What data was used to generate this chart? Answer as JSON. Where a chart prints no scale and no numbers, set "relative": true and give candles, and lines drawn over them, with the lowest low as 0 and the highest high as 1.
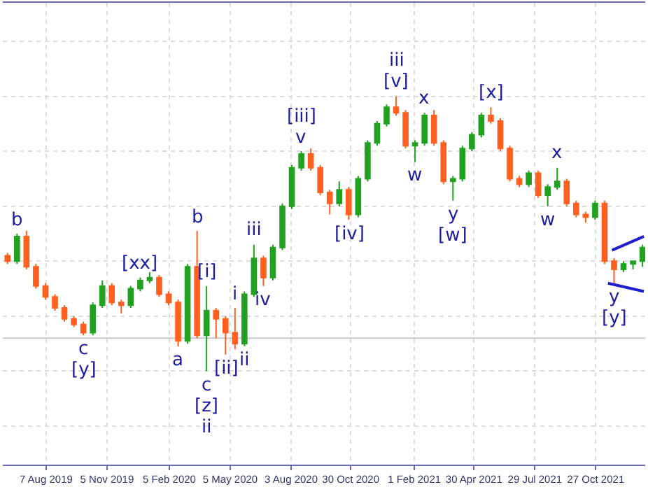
{
  "chart_data": {
    "type": "candlestick",
    "relative": true,
    "grid": true,
    "x": [
      "2019-06-11",
      "2019-06-25",
      "2019-07-09",
      "2019-07-23",
      "2019-08-06",
      "2019-08-20",
      "2019-09-03",
      "2019-09-17",
      "2019-10-01",
      "2019-10-15",
      "2019-10-29",
      "2019-11-12",
      "2019-11-26",
      "2019-12-10",
      "2019-12-24",
      "2020-01-07",
      "2020-01-21",
      "2020-02-04",
      "2020-02-18",
      "2020-03-03",
      "2020-03-17",
      "2020-03-31",
      "2020-04-14",
      "2020-04-28",
      "2020-05-12",
      "2020-05-26",
      "2020-06-09",
      "2020-06-23",
      "2020-07-07",
      "2020-07-21",
      "2020-08-04",
      "2020-08-18",
      "2020-09-01",
      "2020-09-15",
      "2020-09-29",
      "2020-10-13",
      "2020-10-27",
      "2020-11-10",
      "2020-11-24",
      "2020-12-08",
      "2020-12-22",
      "2021-01-05",
      "2021-01-19",
      "2021-02-02",
      "2021-02-16",
      "2021-03-02",
      "2021-03-16",
      "2021-03-30",
      "2021-04-13",
      "2021-04-27",
      "2021-05-11",
      "2021-05-25",
      "2021-06-08",
      "2021-06-22",
      "2021-07-06",
      "2021-07-20",
      "2021-08-03",
      "2021-08-17",
      "2021-08-31",
      "2021-09-14",
      "2021-09-28",
      "2021-10-12",
      "2021-10-26",
      "2021-11-09",
      "2021-11-23",
      "2021-12-07",
      "2021-12-21",
      "2022-01-04"
    ],
    "ohlc": [
      [
        0.42,
        0.43,
        0.39,
        0.4
      ],
      [
        0.4,
        0.5,
        0.39,
        0.49
      ],
      [
        0.49,
        0.51,
        0.37,
        0.38
      ],
      [
        0.38,
        0.39,
        0.3,
        0.31
      ],
      [
        0.31,
        0.32,
        0.26,
        0.27
      ],
      [
        0.27,
        0.28,
        0.22,
        0.23
      ],
      [
        0.23,
        0.24,
        0.18,
        0.19
      ],
      [
        0.19,
        0.2,
        0.16,
        0.17
      ],
      [
        0.17,
        0.18,
        0.13,
        0.14
      ],
      [
        0.14,
        0.25,
        0.13,
        0.24
      ],
      [
        0.24,
        0.33,
        0.23,
        0.31
      ],
      [
        0.31,
        0.32,
        0.24,
        0.25
      ],
      [
        0.25,
        0.26,
        0.21,
        0.24
      ],
      [
        0.24,
        0.31,
        0.23,
        0.3
      ],
      [
        0.3,
        0.34,
        0.29,
        0.33
      ],
      [
        0.33,
        0.36,
        0.32,
        0.34
      ],
      [
        0.34,
        0.35,
        0.27,
        0.28
      ],
      [
        0.28,
        0.29,
        0.24,
        0.25
      ],
      [
        0.25,
        0.26,
        0.09,
        0.11
      ],
      [
        0.11,
        0.39,
        0.1,
        0.38
      ],
      [
        0.38,
        0.51,
        0.12,
        0.13
      ],
      [
        0.13,
        0.31,
        0.0,
        0.22
      ],
      [
        0.22,
        0.23,
        0.12,
        0.19
      ],
      [
        0.19,
        0.2,
        0.06,
        0.14
      ],
      [
        0.14,
        0.23,
        0.08,
        0.1
      ],
      [
        0.1,
        0.29,
        0.09,
        0.28
      ],
      [
        0.28,
        0.46,
        0.27,
        0.41
      ],
      [
        0.41,
        0.42,
        0.31,
        0.34
      ],
      [
        0.34,
        0.46,
        0.33,
        0.45
      ],
      [
        0.45,
        0.61,
        0.44,
        0.6
      ],
      [
        0.6,
        0.75,
        0.59,
        0.74
      ],
      [
        0.74,
        0.8,
        0.73,
        0.79
      ],
      [
        0.79,
        0.81,
        0.73,
        0.74
      ],
      [
        0.74,
        0.75,
        0.64,
        0.65
      ],
      [
        0.65,
        0.66,
        0.57,
        0.61
      ],
      [
        0.61,
        0.69,
        0.6,
        0.66
      ],
      [
        0.66,
        0.67,
        0.55,
        0.57
      ],
      [
        0.57,
        0.71,
        0.56,
        0.7
      ],
      [
        0.7,
        0.84,
        0.69,
        0.83
      ],
      [
        0.83,
        0.91,
        0.82,
        0.9
      ],
      [
        0.9,
        0.97,
        0.89,
        0.96
      ],
      [
        0.96,
        1.0,
        0.93,
        0.94
      ],
      [
        0.94,
        0.95,
        0.81,
        0.82
      ],
      [
        0.82,
        0.84,
        0.76,
        0.83
      ],
      [
        0.83,
        0.94,
        0.82,
        0.93
      ],
      [
        0.93,
        0.95,
        0.82,
        0.83
      ],
      [
        0.83,
        0.84,
        0.68,
        0.69
      ],
      [
        0.69,
        0.71,
        0.62,
        0.7
      ],
      [
        0.7,
        0.82,
        0.69,
        0.81
      ],
      [
        0.81,
        0.87,
        0.8,
        0.86
      ],
      [
        0.86,
        0.94,
        0.85,
        0.93
      ],
      [
        0.93,
        0.96,
        0.9,
        0.91
      ],
      [
        0.91,
        0.92,
        0.8,
        0.81
      ],
      [
        0.81,
        0.82,
        0.69,
        0.7
      ],
      [
        0.7,
        0.71,
        0.67,
        0.68
      ],
      [
        0.68,
        0.73,
        0.67,
        0.72
      ],
      [
        0.72,
        0.73,
        0.63,
        0.64
      ],
      [
        0.64,
        0.68,
        0.6,
        0.67
      ],
      [
        0.67,
        0.74,
        0.66,
        0.69
      ],
      [
        0.69,
        0.7,
        0.6,
        0.61
      ],
      [
        0.61,
        0.62,
        0.56,
        0.57
      ],
      [
        0.57,
        0.58,
        0.54,
        0.56
      ],
      [
        0.56,
        0.62,
        0.55,
        0.61
      ],
      [
        0.61,
        0.62,
        0.39,
        0.4
      ],
      [
        0.4,
        0.41,
        0.32,
        0.37
      ],
      [
        0.37,
        0.4,
        0.36,
        0.39
      ],
      [
        0.39,
        0.4,
        0.37,
        0.4
      ],
      [
        0.4,
        0.46,
        0.38,
        0.45
      ]
    ],
    "colors": [
      "#ff6020",
      "#22a022",
      "#ff6020",
      "#ff6020",
      "#ff6020",
      "#ff6020",
      "#ff6020",
      "#ff6020",
      "#ff6020",
      "#22a022",
      "#22a022",
      "#ff6020",
      "#ff6020",
      "#22a022",
      "#22a022",
      "#22a022",
      "#ff6020",
      "#ff6020",
      "#ff6020",
      "#22a022",
      "#ff6020",
      "#22a022",
      "#ff6020",
      "#ff6020",
      "#ff6020",
      "#22a022",
      "#22a022",
      "#ff6020",
      "#22a022",
      "#22a022",
      "#22a022",
      "#22a022",
      "#ff6020",
      "#ff6020",
      "#ff6020",
      "#22a022",
      "#ff6020",
      "#22a022",
      "#22a022",
      "#22a022",
      "#22a022",
      "#ff6020",
      "#ff6020",
      "#22a022",
      "#22a022",
      "#ff6020",
      "#ff6020",
      "#22a022",
      "#22a022",
      "#22a022",
      "#22a022",
      "#ff6020",
      "#ff6020",
      "#ff6020",
      "#ff6020",
      "#22a022",
      "#ff6020",
      "#22a022",
      "#22a022",
      "#ff6020",
      "#ff6020",
      "#ff6020",
      "#22a022",
      "#ff6020",
      "#ff6020",
      "#22a022",
      "#22a022",
      "#22a022"
    ],
    "series": [
      {
        "type": "line",
        "color": "#1f1fd0",
        "x": [
          "2021-11-20",
          "2022-01-06"
        ],
        "values": [
          0.44,
          0.49
        ]
      },
      {
        "type": "line",
        "color": "#1f1fd0",
        "x": [
          "2021-11-14",
          "2022-01-06"
        ],
        "values": [
          0.32,
          0.29
        ]
      }
    ],
    "ref_lines": [
      {
        "axis": "y",
        "value": 0.12,
        "color": "#c8c8c8"
      }
    ],
    "xlim": [
      "2019-06-04",
      "2022-01-08"
    ],
    "xticks": [
      {
        "value": "2019-08-07",
        "label": "7 Aug 2019"
      },
      {
        "value": "2019-11-05",
        "label": "5 Nov 2019"
      },
      {
        "value": "2020-02-05",
        "label": "5 Feb 2020"
      },
      {
        "value": "2020-05-05",
        "label": "5 May 2020"
      },
      {
        "value": "2020-08-03",
        "label": "3 Aug 2020"
      },
      {
        "value": "2020-10-30",
        "label": "30 Oct 2020"
      },
      {
        "value": "2021-02-01",
        "label": "1 Feb 2021"
      },
      {
        "value": "2021-04-30",
        "label": "30 Apr 2021"
      },
      {
        "value": "2021-07-29",
        "label": "29 Jul 2021"
      },
      {
        "value": "2021-10-27",
        "label": "27 Oct 2021"
      }
    ],
    "annotations": [
      {
        "text": "b",
        "x": "2019-06-25",
        "y": 0.5
      },
      {
        "text": "[xx]",
        "x": "2019-12-24",
        "y": 0.34
      },
      {
        "text": "c",
        "x": "2019-10-01",
        "y": 0.13
      },
      {
        "text": "[y]",
        "x": "2019-10-01",
        "y": 0.13
      },
      {
        "text": "a",
        "x": "2020-02-18",
        "y": 0.09
      },
      {
        "text": "b",
        "x": "2020-03-17",
        "y": 0.51
      },
      {
        "text": "[i]",
        "x": "2020-03-31",
        "y": 0.31
      },
      {
        "text": "i",
        "x": "2020-05-12",
        "y": 0.23
      },
      {
        "text": "c",
        "x": "2020-03-31",
        "y": 0.0
      },
      {
        "text": "[z]",
        "x": "2020-03-31",
        "y": 0.0
      },
      {
        "text": "ii",
        "x": "2020-03-31",
        "y": 0.0
      },
      {
        "text": "[ii]",
        "x": "2020-04-28",
        "y": 0.06
      },
      {
        "text": "ii",
        "x": "2020-05-26",
        "y": 0.09
      },
      {
        "text": "iii",
        "x": "2020-06-09",
        "y": 0.46
      },
      {
        "text": "iv",
        "x": "2020-06-23",
        "y": 0.31
      },
      {
        "text": "v",
        "x": "2020-08-18",
        "y": 0.8
      },
      {
        "text": "[iii]",
        "x": "2020-08-18",
        "y": 0.8
      },
      {
        "text": "[iv]",
        "x": "2020-10-27",
        "y": 0.55
      },
      {
        "text": "[v]",
        "x": "2021-01-05",
        "y": 1.0
      },
      {
        "text": "iii",
        "x": "2021-01-05",
        "y": 1.0
      },
      {
        "text": "x",
        "x": "2021-02-16",
        "y": 0.94
      },
      {
        "text": "w",
        "x": "2021-02-02",
        "y": 0.76
      },
      {
        "text": "y",
        "x": "2021-03-30",
        "y": 0.62
      },
      {
        "text": "[w]",
        "x": "2021-03-30",
        "y": 0.62
      },
      {
        "text": "[x]",
        "x": "2021-05-25",
        "y": 0.96
      },
      {
        "text": "x",
        "x": "2021-08-31",
        "y": 0.74
      },
      {
        "text": "w",
        "x": "2021-08-17",
        "y": 0.6
      },
      {
        "text": "y",
        "x": "2021-11-23",
        "y": 0.32
      },
      {
        "text": "[y]",
        "x": "2021-11-23",
        "y": 0.32
      }
    ]
  }
}
